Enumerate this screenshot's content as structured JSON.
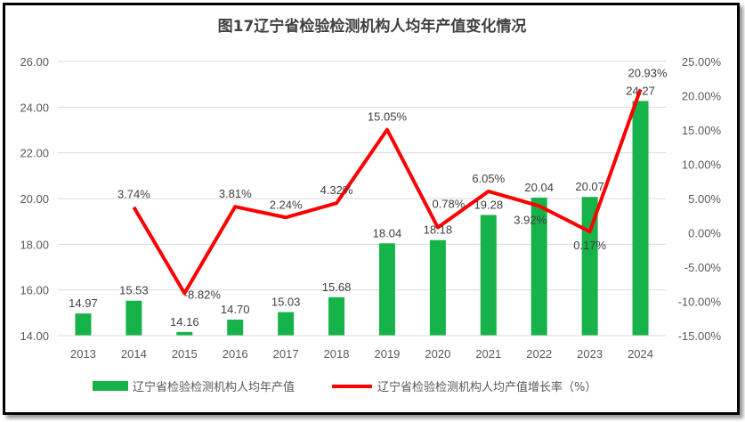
{
  "chart_data": {
    "type": "bar+line",
    "title": "图17辽宁省检验检测机构人均年产值变化情况",
    "categories": [
      "2013",
      "2014",
      "2015",
      "2016",
      "2017",
      "2018",
      "2019",
      "2020",
      "2021",
      "2022",
      "2023",
      "2024"
    ],
    "series": [
      {
        "name": "辽宁省检验检测机构人均年产值",
        "type": "bar",
        "axis": "left",
        "color": "#16B24A",
        "values": [
          14.97,
          15.53,
          14.16,
          14.7,
          15.03,
          15.68,
          18.04,
          18.18,
          19.28,
          20.04,
          20.07,
          24.27
        ],
        "labels": [
          "14.97",
          "15.53",
          "14.16",
          "14.70",
          "15.03",
          "15.68",
          "18.04",
          "18.18",
          "19.28",
          "20.04",
          "20.07",
          "24.27"
        ]
      },
      {
        "name": "辽宁省检验检测机构人均产值增长率（%）",
        "type": "line",
        "axis": "right",
        "color": "#FF0000",
        "values": [
          null,
          3.74,
          -8.82,
          3.81,
          2.24,
          4.32,
          15.05,
          0.78,
          6.05,
          3.92,
          0.17,
          20.93
        ],
        "labels": [
          "",
          "3.74%",
          "-8.82%",
          "3.81%",
          "2.24%",
          "4.32%",
          "15.05%",
          "0.78%",
          "6.05%",
          "3.92%",
          "0.17%",
          "20.93%"
        ]
      }
    ],
    "y_left": {
      "range": [
        14,
        26
      ],
      "ticks": [
        "14.00",
        "16.00",
        "18.00",
        "20.00",
        "22.00",
        "24.00",
        "26.00"
      ]
    },
    "y_right": {
      "range": [
        -15,
        25
      ],
      "ticks": [
        "-15.00%",
        "-10.00%",
        "-5.00%",
        "0.00%",
        "5.00%",
        "10.00%",
        "15.00%",
        "20.00%",
        "25.00%"
      ]
    },
    "grid": true,
    "legend": "bottom"
  }
}
